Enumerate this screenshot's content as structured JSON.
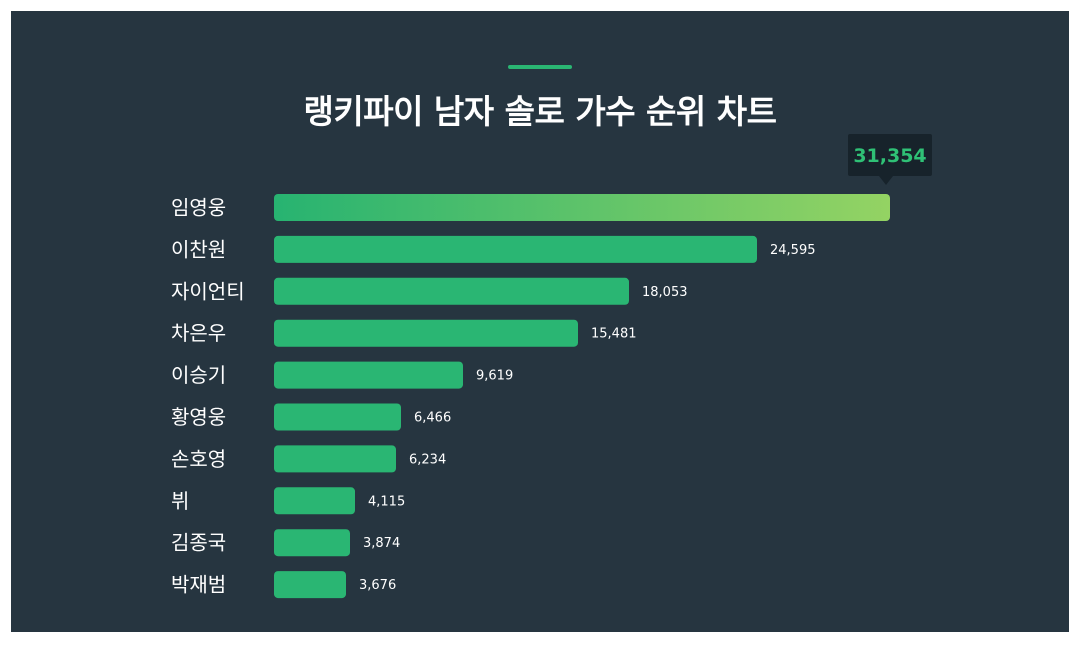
{
  "colors": {
    "background": "#263540",
    "bar": "#2ab673",
    "bar_top_gradient_start": "#27b371",
    "bar_top_gradient_end": "#94d363",
    "accent": "#2ab673",
    "tooltip_bg": "#17232b",
    "tooltip_text": "#2fc176",
    "text": "#ffffff"
  },
  "chart_data": {
    "type": "bar",
    "orientation": "horizontal",
    "title": "랭키파이 남자 솔로 가수 순위 차트",
    "categories": [
      "임영웅",
      "이찬원",
      "자이언티",
      "차은우",
      "이승기",
      "황영웅",
      "손호영",
      "뷔",
      "김종국",
      "박재범"
    ],
    "values": [
      31354,
      24595,
      18053,
      15481,
      9619,
      6466,
      6234,
      4115,
      3874,
      3676
    ],
    "value_labels": [
      "31,354",
      "24,595",
      "18,053",
      "15,481",
      "9,619",
      "6,466",
      "6,234",
      "4,115",
      "3,874",
      "3,676"
    ],
    "xlim": [
      0,
      31354
    ],
    "grid": false,
    "legend": "none",
    "highlight_index": 0
  }
}
